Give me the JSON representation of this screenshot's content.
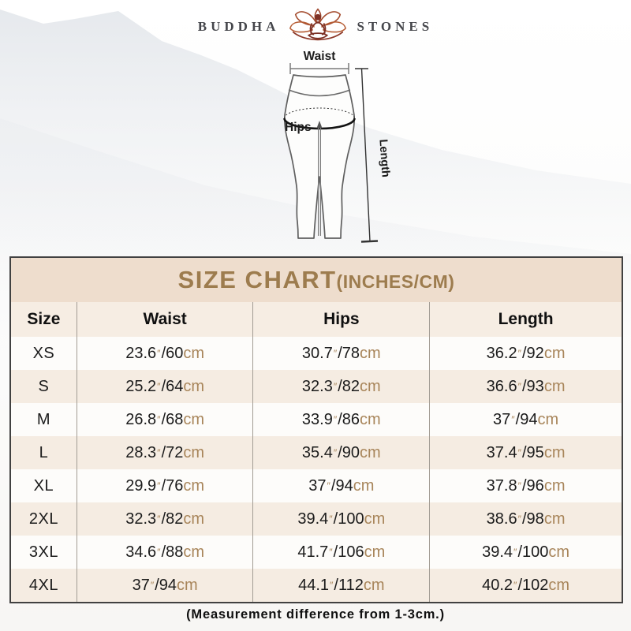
{
  "brand": {
    "name_left": "BUDDHA",
    "name_right": "STONES"
  },
  "diagram": {
    "waist_label": "Waist",
    "hips_label": "Hips",
    "length_label": "Length"
  },
  "size_chart": {
    "title": "SIZE CHART",
    "title_suffix": "(INCHES/CM)",
    "unit_inch": "″",
    "unit_cm": "cm",
    "columns": [
      "Size",
      "Waist",
      "Hips",
      "Length"
    ],
    "rows": [
      {
        "size": "XS",
        "waist": {
          "in": "23.6",
          "cm": "60"
        },
        "hips": {
          "in": "30.7",
          "cm": "78"
        },
        "length": {
          "in": "36.2",
          "cm": "92"
        }
      },
      {
        "size": "S",
        "waist": {
          "in": "25.2",
          "cm": "64"
        },
        "hips": {
          "in": "32.3",
          "cm": "82"
        },
        "length": {
          "in": "36.6",
          "cm": "93"
        }
      },
      {
        "size": "M",
        "waist": {
          "in": "26.8",
          "cm": "68"
        },
        "hips": {
          "in": "33.9",
          "cm": "86"
        },
        "length": {
          "in": "37",
          "cm": "94"
        }
      },
      {
        "size": "L",
        "waist": {
          "in": "28.3",
          "cm": "72"
        },
        "hips": {
          "in": "35.4",
          "cm": "90"
        },
        "length": {
          "in": "37.4",
          "cm": "95"
        }
      },
      {
        "size": "XL",
        "waist": {
          "in": "29.9",
          "cm": "76"
        },
        "hips": {
          "in": "37",
          "cm": "94"
        },
        "length": {
          "in": "37.8",
          "cm": "96"
        }
      },
      {
        "size": "2XL",
        "waist": {
          "in": "32.3",
          "cm": "82"
        },
        "hips": {
          "in": "39.4",
          "cm": "100"
        },
        "length": {
          "in": "38.6",
          "cm": "98"
        }
      },
      {
        "size": "3XL",
        "waist": {
          "in": "34.6",
          "cm": "88"
        },
        "hips": {
          "in": "41.7",
          "cm": "106"
        },
        "length": {
          "in": "39.4",
          "cm": "100"
        }
      },
      {
        "size": "4XL",
        "waist": {
          "in": "37",
          "cm": "94"
        },
        "hips": {
          "in": "44.1",
          "cm": "112"
        },
        "length": {
          "in": "40.2",
          "cm": "102"
        }
      }
    ],
    "footnote": "(Measurement difference from 1-3cm.)"
  },
  "colors": {
    "title_text": "#9d7c4e",
    "unit_tan": "#a8855a",
    "title_band": "#eeddcd",
    "header_band": "#f6ede3",
    "row_alt": "#f5ece2",
    "table_border": "#414141",
    "lotus_red": "#7d3125",
    "brand_text": "#45464b"
  }
}
